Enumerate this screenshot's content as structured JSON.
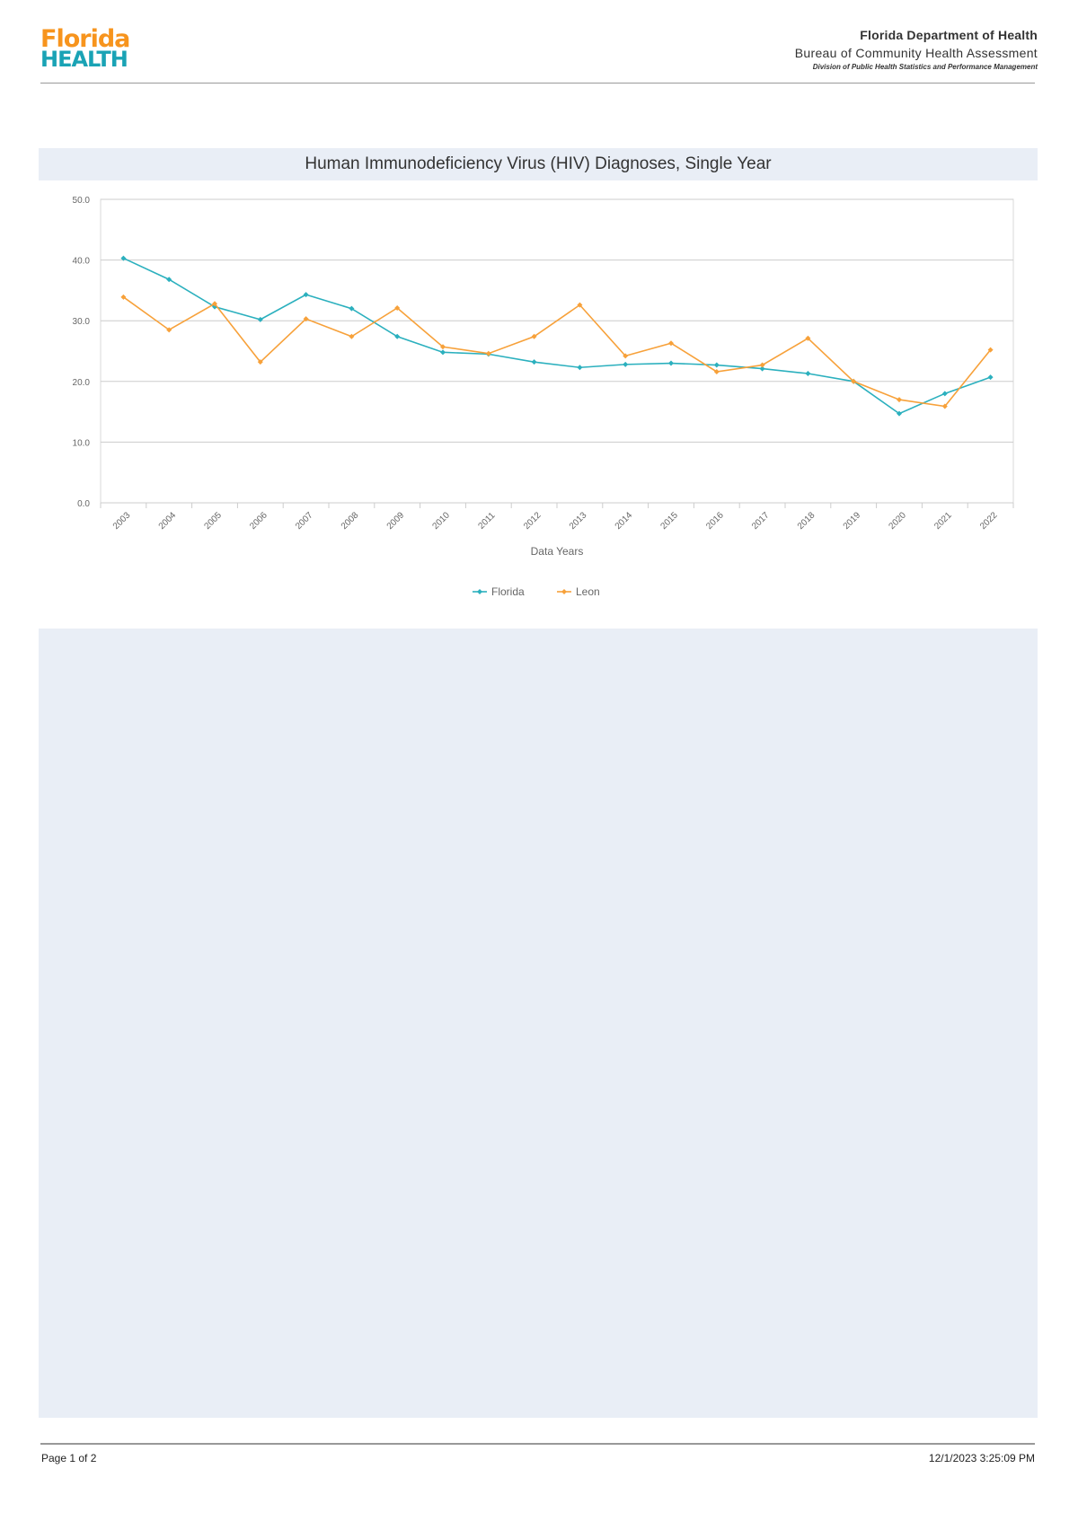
{
  "header": {
    "logo": {
      "line1": "Florida",
      "line2": "HEALTH"
    },
    "org": "Florida Department of Health",
    "bureau": "Bureau of Community Health Assessment",
    "division": "Division of Public Health Statistics and Performance Management"
  },
  "chart_title": "Human Immunodeficiency Virus (HIV) Diagnoses, Single Year",
  "footer": {
    "page": "Page 1 of 2",
    "timestamp": "12/1/2023 3:25:09 PM"
  },
  "colors": {
    "florida": "#2bb0be",
    "leon": "#f7a13a",
    "panel_bg": "#e9eef6",
    "gridline": "#cccccc"
  },
  "chart_data": {
    "type": "line",
    "title": "Human Immunodeficiency Virus (HIV) Diagnoses, Single Year",
    "xlabel": "Data Years",
    "ylabel": "",
    "ylim": [
      0,
      50
    ],
    "yticks": [
      "0.0",
      "10.0",
      "20.0",
      "30.0",
      "40.0",
      "50.0"
    ],
    "grid": true,
    "legend_position": "bottom",
    "categories": [
      "2003",
      "2004",
      "2005",
      "2006",
      "2007",
      "2008",
      "2009",
      "2010",
      "2011",
      "2012",
      "2013",
      "2014",
      "2015",
      "2016",
      "2017",
      "2018",
      "2019",
      "2020",
      "2021",
      "2022"
    ],
    "series": [
      {
        "name": "Florida",
        "color": "#2bb0be",
        "values": [
          40.3,
          36.8,
          32.3,
          30.2,
          34.3,
          32.0,
          27.4,
          24.8,
          24.5,
          23.2,
          22.3,
          22.8,
          23.0,
          22.7,
          22.1,
          21.3,
          20.0,
          14.7,
          18.0,
          20.7
        ]
      },
      {
        "name": "Leon",
        "color": "#f7a13a",
        "values": [
          33.9,
          28.5,
          32.8,
          23.2,
          30.3,
          27.4,
          32.1,
          25.7,
          24.6,
          27.4,
          32.6,
          24.2,
          26.3,
          21.6,
          22.7,
          27.1,
          20.0,
          17.0,
          15.9,
          25.2
        ]
      }
    ]
  }
}
